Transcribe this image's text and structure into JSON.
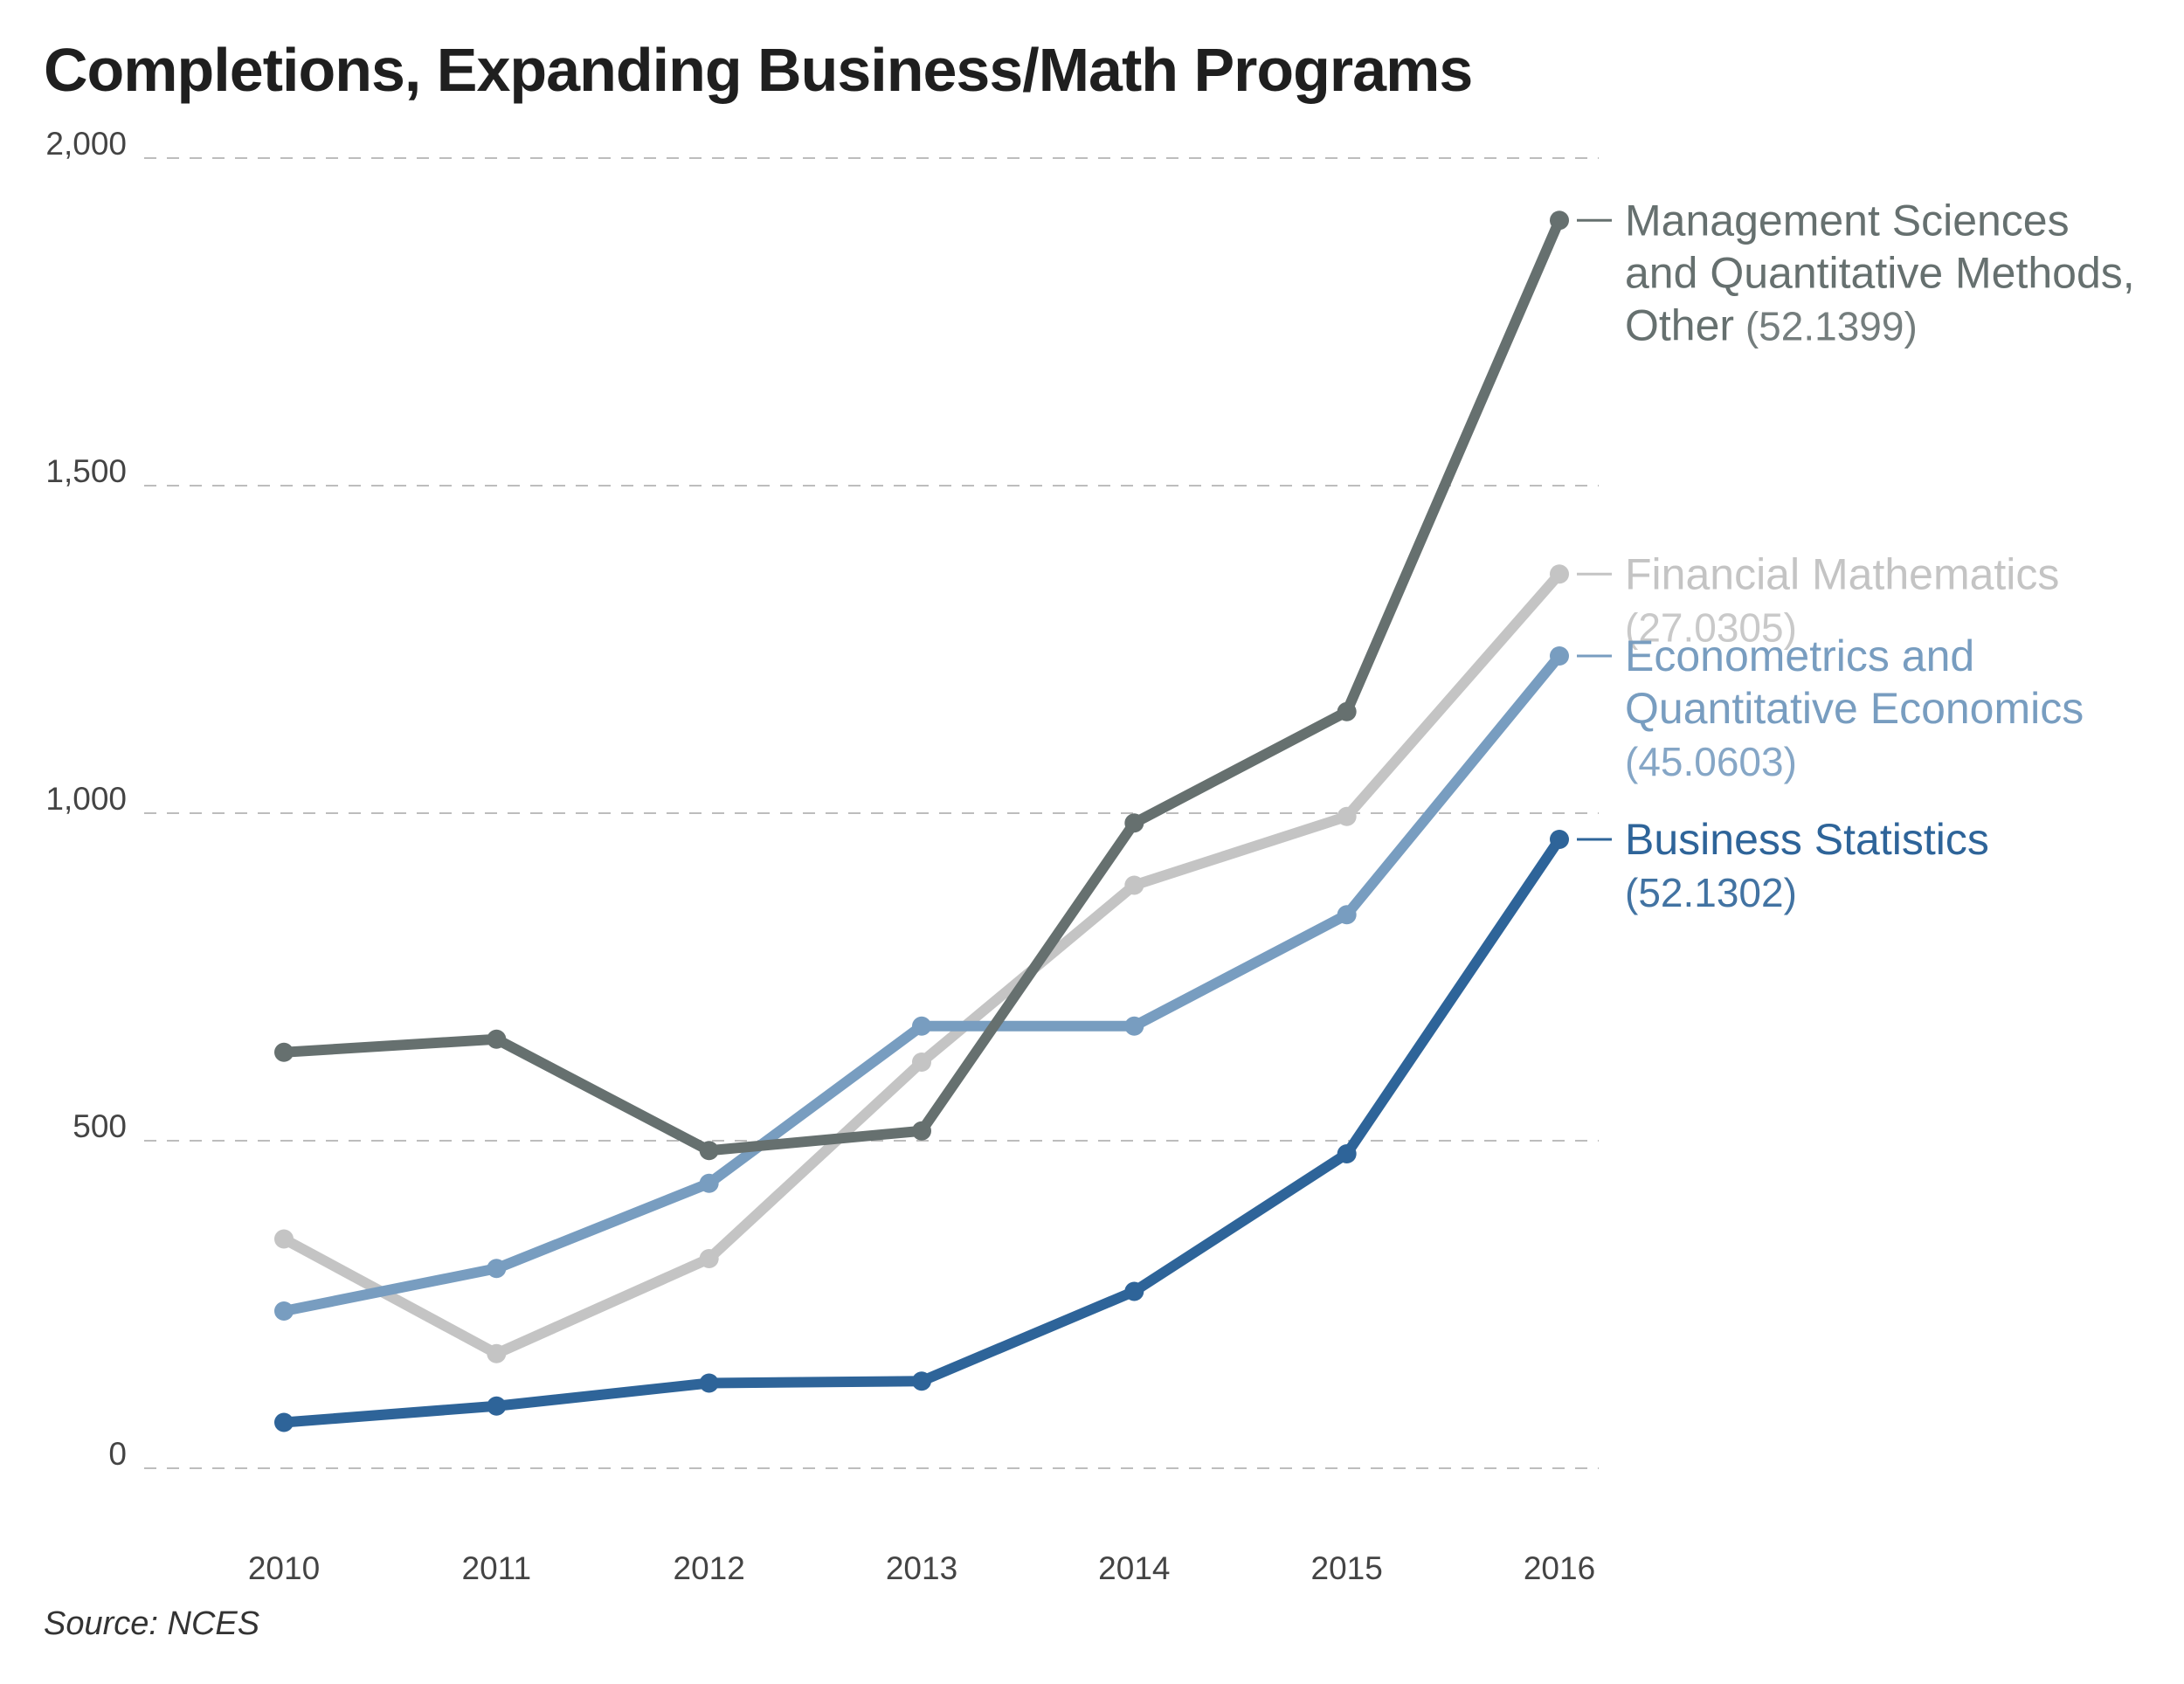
{
  "title": "Completions, Expanding Business/Math Programs",
  "source": "Source: NCES",
  "chart_data": {
    "type": "line",
    "title": "Completions, Expanding Business/Math Programs",
    "xlabel": "",
    "ylabel": "",
    "x": [
      "2010",
      "2011",
      "2012",
      "2013",
      "2014",
      "2015",
      "2016"
    ],
    "ylim": [
      0,
      2000
    ],
    "yticks": [
      0,
      500,
      1000,
      1500,
      2000
    ],
    "ytick_labels": [
      "0",
      "500",
      "1,000",
      "1,500",
      "2,000"
    ],
    "grid": "horizontal-dashed",
    "legend": "direct-labels-right",
    "series": [
      {
        "name": "Management Sciences and Quantitative Methods, Other",
        "label_lines": [
          "Management Sciences",
          "and Quantitative Methods,",
          "Other"
        ],
        "code": "(52.1399)",
        "color": "#66706f",
        "values": [
          635,
          655,
          485,
          515,
          985,
          1155,
          1905
        ]
      },
      {
        "name": "Financial Mathematics",
        "label_lines": [
          "Financial Mathematics"
        ],
        "code": "(27.0305)",
        "color": "#c4c4c4",
        "values": [
          350,
          175,
          320,
          620,
          890,
          995,
          1365
        ]
      },
      {
        "name": "Econometrics and Quantitative Economics",
        "label_lines": [
          "Econometrics and",
          "Quantitative Economics"
        ],
        "code": "(45.0603)",
        "color": "#789dc0",
        "values": [
          240,
          305,
          435,
          675,
          675,
          845,
          1240
        ]
      },
      {
        "name": "Business Statistics",
        "label_lines": [
          "Business Statistics"
        ],
        "code": "(52.1302)",
        "color": "#2e6499",
        "values": [
          70,
          95,
          130,
          133,
          270,
          480,
          960
        ]
      }
    ]
  }
}
